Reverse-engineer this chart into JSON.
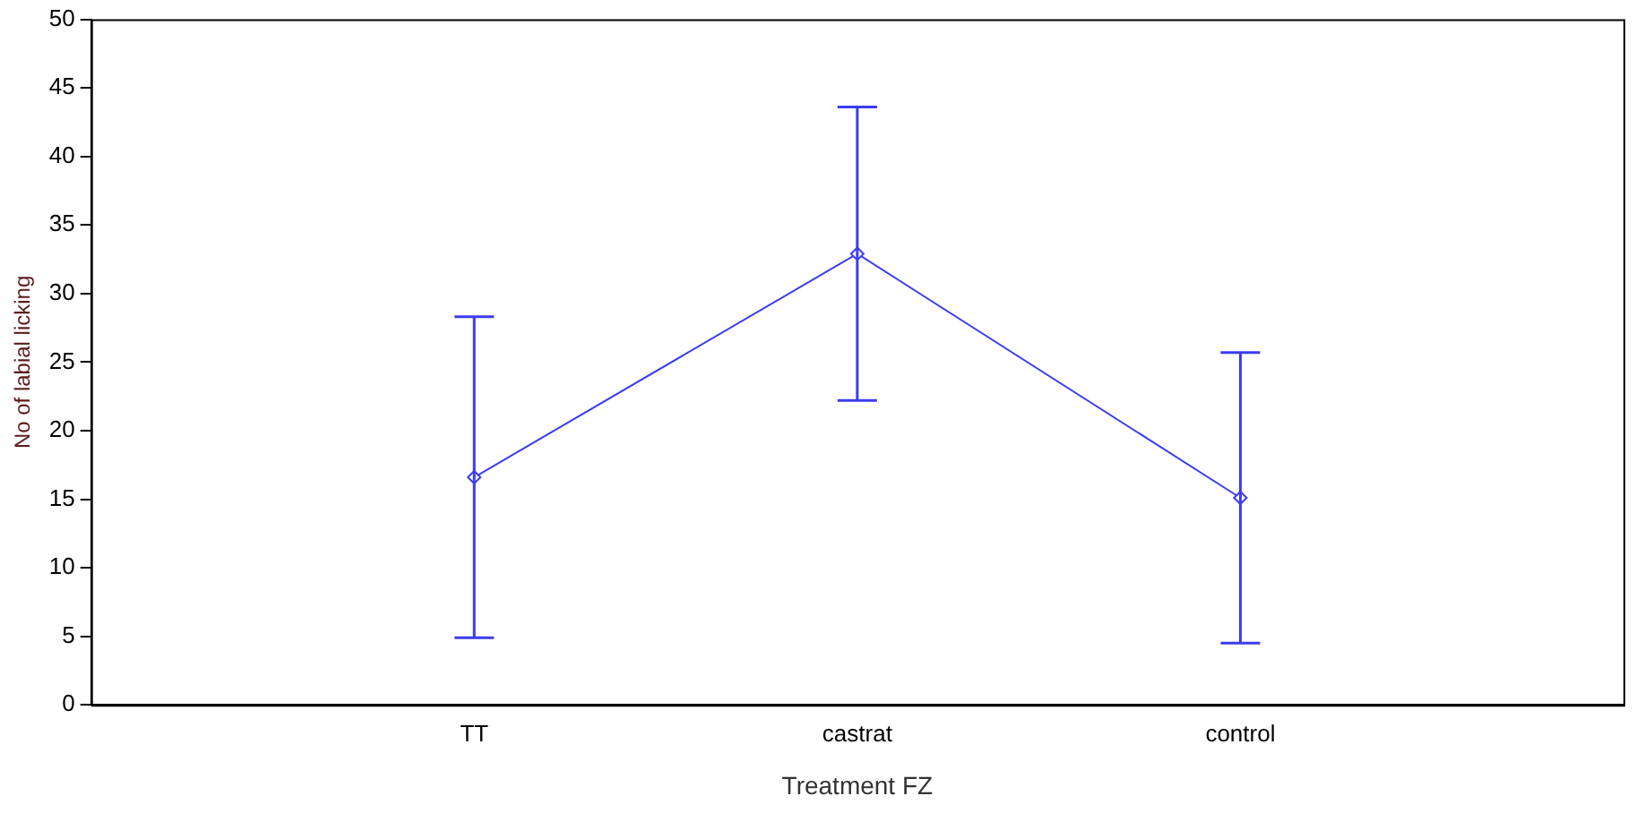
{
  "chart_data": {
    "type": "line",
    "xlabel": "Treatment FZ",
    "ylabel": "No of labial licking",
    "categories": [
      "TT",
      "castrat",
      "control"
    ],
    "series": [
      {
        "color": "#3c3cf0",
        "values": [
          16.6,
          32.9,
          15.1
        ],
        "errors": [
          11.7,
          10.7,
          10.6
        ]
      }
    ],
    "ylim": [
      0,
      50
    ],
    "yticks": [
      0,
      5,
      10,
      15,
      20,
      25,
      30,
      35,
      40,
      45,
      50
    ],
    "grid": false,
    "legend": false,
    "marker": "diamond",
    "line_style": "solid"
  }
}
